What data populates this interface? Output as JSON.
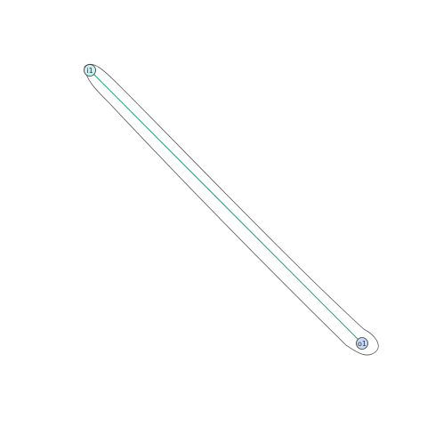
{
  "graph": {
    "nodes": [
      {
        "id": "i1",
        "label": "i1",
        "color": "#c6f1f1"
      },
      {
        "id": "o1",
        "label": "o1",
        "color": "#c6d8f8"
      }
    ],
    "edges": [
      {
        "from": "i1",
        "to": "o1",
        "color": "#1aa37a"
      }
    ],
    "hull": {
      "color": "#555555"
    },
    "node_border_color": "#333333"
  }
}
